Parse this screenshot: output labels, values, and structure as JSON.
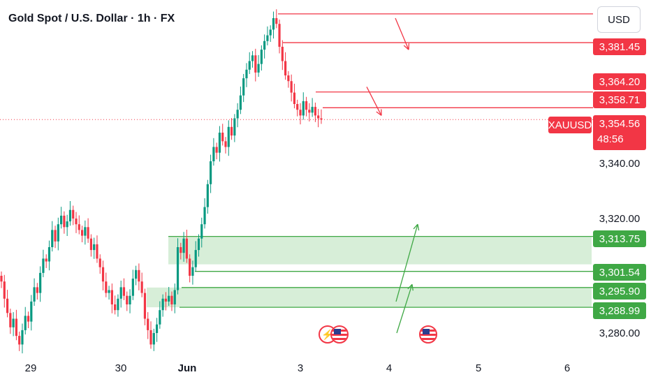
{
  "header": {
    "title": "Gold Spot / U.S. Dollar · 1h · FX"
  },
  "currency": "USD",
  "symbol": "XAUUSD",
  "countdown": "48:56",
  "price_axis": {
    "plain_labels": [
      "3,340.00",
      "3,320.00",
      "3,280.00"
    ],
    "red_labels": [
      "3,381.45",
      "3,364.20",
      "3,358.71"
    ],
    "current_price": "3,354.56",
    "green_labels": [
      "3,313.75",
      "3,301.54",
      "3,295.90",
      "3,288.99"
    ]
  },
  "time_axis": [
    "29",
    "30",
    "Jun",
    "3",
    "4",
    "5",
    "6"
  ],
  "colors": {
    "up": "#089981",
    "down": "#f23645",
    "resistance": "#f23645",
    "support": "#3fa845",
    "zone_fill": "#d7eed8"
  },
  "event_icons": [
    "lightning-icon",
    "us-flag-icon",
    "us-flag-icon"
  ],
  "chart_data": {
    "type": "candlestick",
    "title": "Gold Spot / U.S. Dollar · 1h · FX",
    "y_unit": "USD",
    "ylim": [
      3274,
      3395
    ],
    "x_tick_labels": [
      "29",
      "30",
      "Jun",
      "3",
      "4",
      "5",
      "6"
    ],
    "current_price": 3354.56,
    "resistance_levels": [
      3391.5,
      3381.45,
      3364.2,
      3358.71
    ],
    "support_levels": [
      3313.75,
      3301.54,
      3295.9,
      3288.99
    ],
    "demand_zones": [
      [
        3304,
        3313.75
      ],
      [
        3288.99,
        3295.9
      ]
    ],
    "projection_arrows": [
      {
        "color": "red",
        "direction": "down",
        "from": 3390,
        "to": 3379
      },
      {
        "color": "red",
        "direction": "down",
        "from": 3366,
        "to": 3356
      },
      {
        "color": "green",
        "direction": "up",
        "from": 3291,
        "to": 3318
      },
      {
        "color": "green",
        "direction": "up",
        "from": 3280,
        "to": 3297
      }
    ],
    "candles_close": [
      3298,
      3292,
      3287,
      3282,
      3285,
      3279,
      3276,
      3281,
      3286,
      3284,
      3291,
      3296,
      3294,
      3301,
      3306,
      3305,
      3310,
      3316,
      3312,
      3318,
      3321,
      3317,
      3319,
      3323,
      3320,
      3318,
      3316,
      3314,
      3317,
      3313,
      3309,
      3311,
      3306,
      3303,
      3298,
      3294,
      3295,
      3290,
      3288,
      3292,
      3296,
      3293,
      3290,
      3293,
      3299,
      3302,
      3298,
      3294,
      3285,
      3281,
      3276,
      3280,
      3283,
      3288,
      3292,
      3291,
      3293,
      3290,
      3295,
      3310,
      3308,
      3313,
      3306,
      3300,
      3303,
      3309,
      3313,
      3318,
      3324,
      3332,
      3340,
      3345,
      3343,
      3350,
      3347,
      3345,
      3352,
      3349,
      3355,
      3358,
      3363,
      3369,
      3372,
      3375,
      3377,
      3371,
      3374,
      3379,
      3382,
      3384,
      3386,
      3390,
      3388,
      3380,
      3375,
      3370,
      3368,
      3364,
      3360,
      3358,
      3356,
      3361,
      3358,
      3357,
      3359,
      3356,
      3355,
      3354.56
    ]
  }
}
